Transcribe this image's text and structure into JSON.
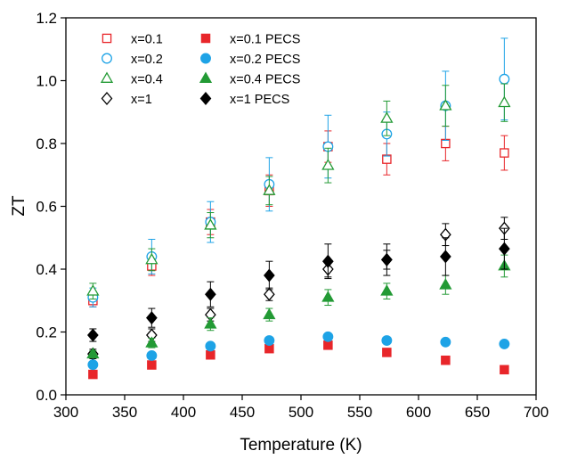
{
  "chart_data": {
    "type": "scatter",
    "xlabel": "Temperature (K)",
    "ylabel": "ZT",
    "xlim": [
      300,
      700
    ],
    "ylim": [
      0,
      1.2
    ],
    "xticks": [
      300,
      350,
      400,
      450,
      500,
      550,
      600,
      650,
      700
    ],
    "yticks": [
      "0.0",
      "0.2",
      "0.4",
      "0.6",
      "0.8",
      "1.0",
      "1.2"
    ],
    "grid": false,
    "legend_position": "top-left",
    "series": [
      {
        "name": "x=0.1",
        "color": "#e8262a",
        "marker": "square",
        "filled": false,
        "x": [
          323,
          373,
          423,
          473,
          523,
          573,
          623,
          673
        ],
        "y": [
          0.3,
          0.41,
          0.55,
          0.65,
          0.79,
          0.75,
          0.8,
          0.77
        ],
        "err": [
          0.02,
          0.03,
          0.04,
          0.05,
          0.05,
          0.05,
          0.055,
          0.055
        ]
      },
      {
        "name": "x=0.2",
        "color": "#1ea3e6",
        "marker": "circle",
        "filled": false,
        "x": [
          323,
          373,
          423,
          473,
          523,
          573,
          623,
          673
        ],
        "y": [
          0.31,
          0.44,
          0.55,
          0.67,
          0.79,
          0.83,
          0.92,
          1.005
        ],
        "err": [
          0.03,
          0.055,
          0.065,
          0.085,
          0.1,
          0.07,
          0.11,
          0.13
        ]
      },
      {
        "name": "x=0.4",
        "color": "#239a35",
        "marker": "triangle",
        "filled": false,
        "x": [
          323,
          373,
          423,
          473,
          523,
          573,
          623,
          673
        ],
        "y": [
          0.33,
          0.43,
          0.54,
          0.65,
          0.73,
          0.88,
          0.92,
          0.93
        ],
        "err": [
          0.025,
          0.035,
          0.04,
          0.045,
          0.055,
          0.055,
          0.065,
          0.06
        ]
      },
      {
        "name": "x=1",
        "color": "#000000",
        "marker": "diamond",
        "filled": false,
        "x": [
          323,
          373,
          423,
          473,
          523,
          573,
          623,
          673
        ],
        "y": [
          0.13,
          0.19,
          0.255,
          0.32,
          0.4,
          0.43,
          0.51,
          0.53
        ],
        "err": [
          0.015,
          0.02,
          0.02,
          0.02,
          0.025,
          0.03,
          0.035,
          0.035
        ]
      },
      {
        "name": "x=0.1 PECS",
        "color": "#e8262a",
        "marker": "square",
        "filled": true,
        "x": [
          323,
          373,
          423,
          473,
          523,
          573,
          623,
          673
        ],
        "y": [
          0.065,
          0.095,
          0.127,
          0.147,
          0.158,
          0.135,
          0.11,
          0.08
        ],
        "err": [
          0,
          0,
          0,
          0,
          0,
          0,
          0,
          0
        ]
      },
      {
        "name": "x=0.2 PECS",
        "color": "#1ea3e6",
        "marker": "circle",
        "filled": true,
        "x": [
          323,
          373,
          423,
          473,
          523,
          573,
          623,
          673
        ],
        "y": [
          0.096,
          0.125,
          0.155,
          0.173,
          0.185,
          0.173,
          0.168,
          0.162
        ],
        "err": [
          0,
          0,
          0,
          0,
          0,
          0,
          0,
          0
        ]
      },
      {
        "name": "x=0.4 PECS",
        "color": "#239a35",
        "marker": "triangle",
        "filled": true,
        "x": [
          323,
          373,
          423,
          473,
          523,
          573,
          623,
          673
        ],
        "y": [
          0.13,
          0.165,
          0.225,
          0.255,
          0.31,
          0.33,
          0.35,
          0.41
        ],
        "err": [
          0.01,
          0.015,
          0.02,
          0.02,
          0.025,
          0.025,
          0.03,
          0.035
        ]
      },
      {
        "name": "x=1 PECS",
        "color": "#000000",
        "marker": "diamond",
        "filled": true,
        "x": [
          323,
          373,
          423,
          473,
          523,
          573,
          623,
          673
        ],
        "y": [
          0.19,
          0.245,
          0.32,
          0.38,
          0.425,
          0.43,
          0.44,
          0.465
        ],
        "err": [
          0.02,
          0.03,
          0.04,
          0.045,
          0.055,
          0.05,
          0.06,
          0.065
        ]
      }
    ]
  }
}
